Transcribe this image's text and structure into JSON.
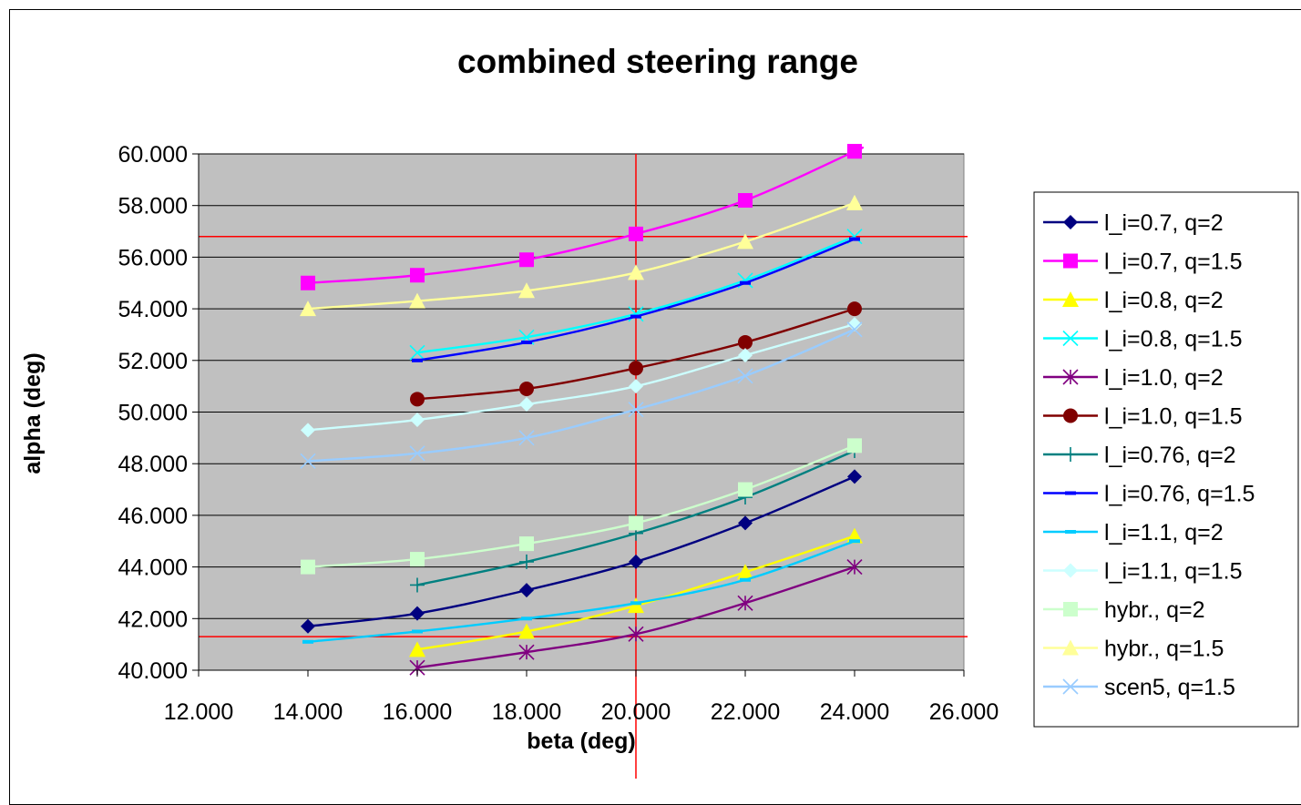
{
  "chart_data": {
    "type": "line",
    "title": "combined steering range",
    "xlabel": "beta (deg)",
    "ylabel": "alpha (deg)",
    "xlim": [
      12,
      26
    ],
    "ylim": [
      40,
      60
    ],
    "x_ticks": [
      "12.000",
      "14.000",
      "16.000",
      "18.000",
      "20.000",
      "22.000",
      "24.000",
      "26.000"
    ],
    "y_ticks": [
      "40.000",
      "42.000",
      "44.000",
      "46.000",
      "48.000",
      "50.000",
      "52.000",
      "54.000",
      "56.000",
      "58.000",
      "60.000"
    ],
    "plot_background": "#c0c0c0",
    "grid": true,
    "legend_position": "right",
    "reference_lines": {
      "color": "#ff0000",
      "vertical_x": [
        20.0
      ],
      "horizontal_y": [
        56.8,
        41.3
      ]
    },
    "series": [
      {
        "name": "l_i=0.7, q=2",
        "color": "#000080",
        "marker": "diamond",
        "x": [
          14,
          16,
          18,
          20,
          22,
          24
        ],
        "y": [
          41.7,
          42.2,
          43.1,
          44.2,
          45.7,
          47.5
        ]
      },
      {
        "name": "l_i=0.7, q=1.5",
        "color": "#ff00ff",
        "marker": "square",
        "x": [
          14,
          16,
          18,
          20,
          22,
          24,
          24.0
        ],
        "y": [
          55.0,
          55.3,
          55.9,
          56.9,
          58.2,
          60.1,
          60.1
        ]
      },
      {
        "name": "l_i=0.8, q=2",
        "color": "#ffff00",
        "marker": "triangle",
        "x": [
          16,
          18,
          20,
          22,
          24
        ],
        "y": [
          40.8,
          41.5,
          42.5,
          43.8,
          45.2
        ]
      },
      {
        "name": "l_i=0.8, q=1.5",
        "color": "#00ffff",
        "marker": "x",
        "x": [
          16,
          18,
          20,
          22,
          24
        ],
        "y": [
          52.3,
          52.9,
          53.8,
          55.1,
          56.8
        ]
      },
      {
        "name": "l_i=1.0, q=2",
        "color": "#800080",
        "marker": "star",
        "x": [
          16,
          18,
          20,
          22,
          24
        ],
        "y": [
          40.1,
          40.7,
          41.4,
          42.6,
          44.0
        ]
      },
      {
        "name": "l_i=1.0, q=1.5",
        "color": "#800000",
        "marker": "circle",
        "x": [
          16,
          18,
          20,
          22,
          24
        ],
        "y": [
          50.5,
          50.9,
          51.7,
          52.7,
          54.0
        ]
      },
      {
        "name": "l_i=0.76, q=2",
        "color": "#008080",
        "marker": "plus",
        "x": [
          16,
          18,
          20,
          22,
          24
        ],
        "y": [
          43.3,
          44.2,
          45.3,
          46.7,
          48.5
        ]
      },
      {
        "name": "l_i=0.76, q=1.5",
        "color": "#0000ff",
        "marker": "dash",
        "x": [
          16,
          18,
          20,
          22,
          24
        ],
        "y": [
          52.0,
          52.7,
          53.7,
          55.0,
          56.7
        ]
      },
      {
        "name": "l_i=1.1, q=2",
        "color": "#00ccff",
        "marker": "dash",
        "x": [
          14,
          16,
          18,
          20,
          22,
          24
        ],
        "y": [
          41.1,
          41.5,
          42.0,
          42.6,
          43.5,
          45.0
        ]
      },
      {
        "name": "l_i=1.1, q=1.5",
        "color": "#ccffff",
        "marker": "diamond",
        "x": [
          14,
          16,
          18,
          20,
          22,
          24
        ],
        "y": [
          49.3,
          49.7,
          50.3,
          51.0,
          52.2,
          53.4
        ]
      },
      {
        "name": "hybr., q=2",
        "color": "#ccffcc",
        "marker": "square",
        "x": [
          14,
          16,
          18,
          20,
          22,
          24
        ],
        "y": [
          44.0,
          44.3,
          44.9,
          45.7,
          47.0,
          48.7
        ]
      },
      {
        "name": "hybr., q=1.5",
        "color": "#ffff99",
        "marker": "triangle",
        "x": [
          14,
          16,
          18,
          20,
          22,
          24
        ],
        "y": [
          54.0,
          54.3,
          54.7,
          55.4,
          56.6,
          58.1
        ]
      },
      {
        "name": "scen5, q=1.5",
        "color": "#99ccff",
        "marker": "x",
        "x": [
          14,
          16,
          18,
          20,
          22,
          24
        ],
        "y": [
          48.1,
          48.4,
          49.0,
          50.1,
          51.4,
          53.2
        ]
      }
    ]
  }
}
